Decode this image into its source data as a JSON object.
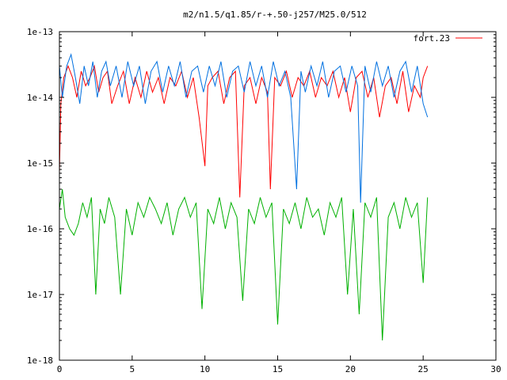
{
  "chart_data": {
    "type": "line",
    "title": "m2/n1.5/q1.85/r-+.50-j257/M25.0/512",
    "xlabel": "",
    "ylabel": "",
    "xlim": [
      0,
      30
    ],
    "ylim": [
      1e-18,
      1e-13
    ],
    "yscale": "log",
    "grid": false,
    "legend_position": "top-right",
    "x_ticks": [
      0,
      5,
      10,
      15,
      20,
      25,
      30
    ],
    "x_tick_labels": [
      "0",
      "5",
      "10",
      "15",
      "20",
      "25",
      "30"
    ],
    "y_ticks": [
      1e-18,
      1e-17,
      1e-16,
      1e-15,
      1e-14,
      1e-13
    ],
    "y_tick_labels": [
      "1e-18",
      "1e-17",
      "1e-16",
      "1e-15",
      "1e-14",
      "1e-13"
    ],
    "series": [
      {
        "name": "fort.23",
        "color": "#ff0000",
        "x": [
          0.0,
          0.1,
          0.3,
          0.6,
          0.9,
          1.2,
          1.5,
          1.8,
          2.1,
          2.4,
          2.7,
          3.0,
          3.3,
          3.6,
          4.0,
          4.4,
          4.8,
          5.2,
          5.6,
          6.0,
          6.4,
          6.8,
          7.2,
          7.6,
          8.0,
          8.4,
          8.8,
          9.2,
          9.6,
          10.0,
          10.2,
          10.5,
          10.9,
          11.3,
          11.7,
          12.1,
          12.4,
          12.7,
          13.1,
          13.5,
          13.9,
          14.3,
          14.5,
          14.8,
          15.2,
          15.6,
          16.0,
          16.4,
          16.8,
          17.2,
          17.6,
          18.0,
          18.4,
          18.8,
          19.2,
          19.6,
          20.0,
          20.4,
          20.8,
          21.2,
          21.6,
          22.0,
          22.4,
          22.8,
          23.2,
          23.6,
          24.0,
          24.4,
          24.8,
          25.0,
          25.3
        ],
        "y": [
          7e-16,
          8e-15,
          2e-14,
          3e-14,
          2e-14,
          1e-14,
          2.5e-14,
          1.5e-14,
          2e-14,
          3e-14,
          1.2e-14,
          2e-14,
          2.5e-14,
          8e-15,
          1.5e-14,
          2.5e-14,
          8e-15,
          2e-14,
          1e-14,
          2.5e-14,
          1.2e-14,
          2e-14,
          8e-15,
          2e-14,
          1.5e-14,
          2.5e-14,
          1e-14,
          2e-14,
          5e-15,
          9e-16,
          1.5e-14,
          2e-14,
          2.5e-14,
          8e-15,
          2e-14,
          2.5e-14,
          3e-16,
          1.5e-14,
          2e-14,
          8e-15,
          2e-14,
          1.2e-14,
          4e-16,
          2e-14,
          1.5e-14,
          2.5e-14,
          1e-14,
          2e-14,
          1.5e-14,
          2.5e-14,
          1e-14,
          2e-14,
          1.5e-14,
          2.5e-14,
          1e-14,
          2e-14,
          6e-15,
          2e-14,
          2.5e-14,
          1e-14,
          2e-14,
          5e-15,
          1.5e-14,
          2e-14,
          8e-15,
          2.5e-14,
          6e-15,
          1.5e-14,
          1e-14,
          2e-14,
          3e-14
        ]
      },
      {
        "name": "",
        "color": "#0070e0",
        "x": [
          0.0,
          0.2,
          0.5,
          0.8,
          1.1,
          1.4,
          1.7,
          2.0,
          2.3,
          2.6,
          2.9,
          3.2,
          3.5,
          3.9,
          4.3,
          4.7,
          5.1,
          5.5,
          5.9,
          6.3,
          6.7,
          7.1,
          7.5,
          7.9,
          8.3,
          8.7,
          9.1,
          9.5,
          9.9,
          10.3,
          10.7,
          11.1,
          11.5,
          11.9,
          12.3,
          12.7,
          13.1,
          13.5,
          13.9,
          14.3,
          14.7,
          15.1,
          15.5,
          15.9,
          16.3,
          16.6,
          16.9,
          17.3,
          17.7,
          18.1,
          18.5,
          18.9,
          19.3,
          19.7,
          20.1,
          20.5,
          20.7,
          21.0,
          21.4,
          21.8,
          22.2,
          22.6,
          23.0,
          23.4,
          23.8,
          24.2,
          24.6,
          25.0,
          25.3
        ],
        "y": [
          3e-14,
          1e-14,
          3e-14,
          4.5e-14,
          2e-14,
          8e-15,
          3e-14,
          1.5e-14,
          3.5e-14,
          1e-14,
          2.5e-14,
          3.5e-14,
          1.5e-14,
          3e-14,
          1e-14,
          3.5e-14,
          1.5e-14,
          3e-14,
          8e-15,
          2.5e-14,
          3.5e-14,
          1.2e-14,
          3e-14,
          1.5e-14,
          3.5e-14,
          1e-14,
          2.5e-14,
          3e-14,
          1.2e-14,
          3e-14,
          1.5e-14,
          3.5e-14,
          1e-14,
          2.5e-14,
          3e-14,
          1.2e-14,
          3.5e-14,
          1.5e-14,
          3e-14,
          1e-14,
          3.5e-14,
          1.5e-14,
          2.5e-14,
          1e-14,
          4e-16,
          2.5e-14,
          1.2e-14,
          3e-14,
          1.5e-14,
          3.5e-14,
          1e-14,
          2.5e-14,
          3e-14,
          1.2e-14,
          3e-14,
          1.5e-14,
          2.5e-16,
          3e-14,
          1.2e-14,
          3.5e-14,
          1.5e-14,
          3e-14,
          1e-14,
          2.5e-14,
          3.5e-14,
          1.2e-14,
          3e-14,
          8e-15,
          5e-15
        ]
      },
      {
        "name": "",
        "color": "#00b000",
        "x": [
          0.0,
          0.2,
          0.4,
          0.7,
          1.0,
          1.3,
          1.6,
          1.9,
          2.2,
          2.5,
          2.8,
          3.1,
          3.4,
          3.8,
          4.2,
          4.6,
          5.0,
          5.4,
          5.8,
          6.2,
          6.6,
          7.0,
          7.4,
          7.8,
          8.2,
          8.6,
          9.0,
          9.4,
          9.8,
          10.2,
          10.6,
          11.0,
          11.4,
          11.8,
          12.2,
          12.6,
          13.0,
          13.4,
          13.8,
          14.2,
          14.6,
          15.0,
          15.4,
          15.8,
          16.2,
          16.6,
          17.0,
          17.4,
          17.8,
          18.2,
          18.6,
          19.0,
          19.4,
          19.8,
          20.2,
          20.6,
          21.0,
          21.4,
          21.8,
          22.2,
          22.6,
          23.0,
          23.4,
          23.8,
          24.2,
          24.6,
          25.0,
          25.3
        ],
        "y": [
          2e-16,
          4e-16,
          1.5e-16,
          1e-16,
          8e-17,
          1.2e-16,
          2.5e-16,
          1.5e-16,
          3e-16,
          1e-17,
          2e-16,
          1.2e-16,
          3e-16,
          1.5e-16,
          1e-17,
          2e-16,
          8e-17,
          2.5e-16,
          1.5e-16,
          3e-16,
          2e-16,
          1.2e-16,
          2.5e-16,
          8e-17,
          2e-16,
          3e-16,
          1.5e-16,
          2.5e-16,
          6e-18,
          2e-16,
          1.2e-16,
          3e-16,
          1e-16,
          2.5e-16,
          1.5e-16,
          8e-18,
          2e-16,
          1.2e-16,
          3e-16,
          1.5e-16,
          2.5e-16,
          3.5e-18,
          2e-16,
          1.2e-16,
          2.5e-16,
          1e-16,
          3e-16,
          1.5e-16,
          2e-16,
          8e-17,
          2.5e-16,
          1.5e-16,
          3e-16,
          1e-17,
          2e-16,
          5e-18,
          2.5e-16,
          1.5e-16,
          3e-16,
          2e-18,
          1.5e-16,
          2.5e-16,
          1e-16,
          3e-16,
          1.5e-16,
          2.5e-16,
          1.5e-17,
          3e-16
        ]
      }
    ]
  }
}
